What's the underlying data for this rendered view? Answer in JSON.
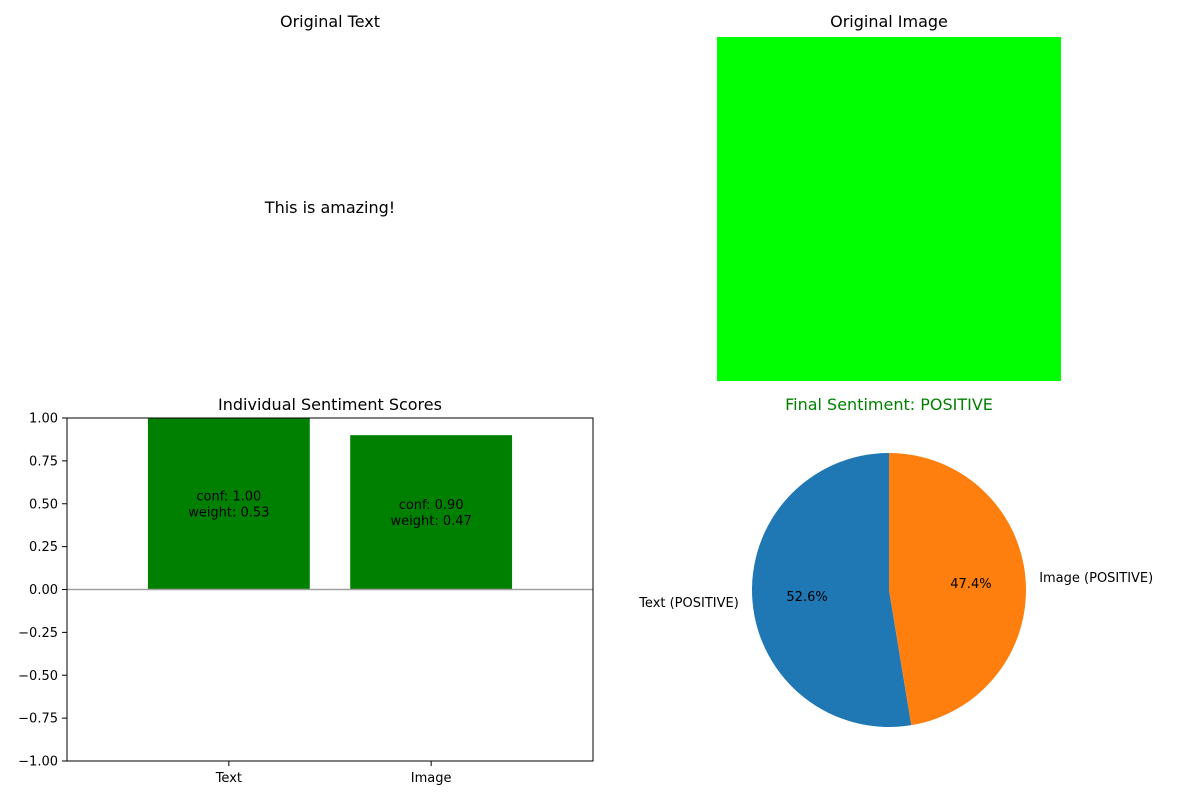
{
  "panels": {
    "text_panel": {
      "title": "Original Text",
      "text": "This is amazing!"
    },
    "image_panel": {
      "title": "Original Image",
      "image_color": "#00ff00"
    }
  },
  "chart_data": [
    {
      "type": "bar",
      "title": "Individual Sentiment Scores",
      "categories": [
        "Text",
        "Image"
      ],
      "values": [
        1.0,
        0.9
      ],
      "bar_labels": [
        [
          "conf: 1.00",
          "weight: 0.53"
        ],
        [
          "conf: 0.90",
          "weight: 0.47"
        ]
      ],
      "bar_color": "#008000",
      "zero_line_color": "#a0a0a0",
      "ylim": [
        -1.0,
        1.0
      ],
      "yticks": [
        -1.0,
        -0.75,
        -0.5,
        -0.25,
        0.0,
        0.25,
        0.5,
        0.75,
        1.0
      ],
      "ytick_labels": [
        "−1.00",
        "−0.75",
        "−0.50",
        "−0.25",
        "0.00",
        "0.25",
        "0.50",
        "0.75",
        "1.00"
      ],
      "grid": false
    },
    {
      "type": "pie",
      "title": "Final Sentiment: POSITIVE",
      "title_color": "#008000",
      "labels": [
        "Text (POSITIVE)",
        "Image (POSITIVE)"
      ],
      "values": [
        52.6,
        47.4
      ],
      "pct_labels": [
        "52.6%",
        "47.4%"
      ],
      "colors": [
        "#1f77b4",
        "#ff7f0e"
      ],
      "start_angle": 90
    }
  ]
}
